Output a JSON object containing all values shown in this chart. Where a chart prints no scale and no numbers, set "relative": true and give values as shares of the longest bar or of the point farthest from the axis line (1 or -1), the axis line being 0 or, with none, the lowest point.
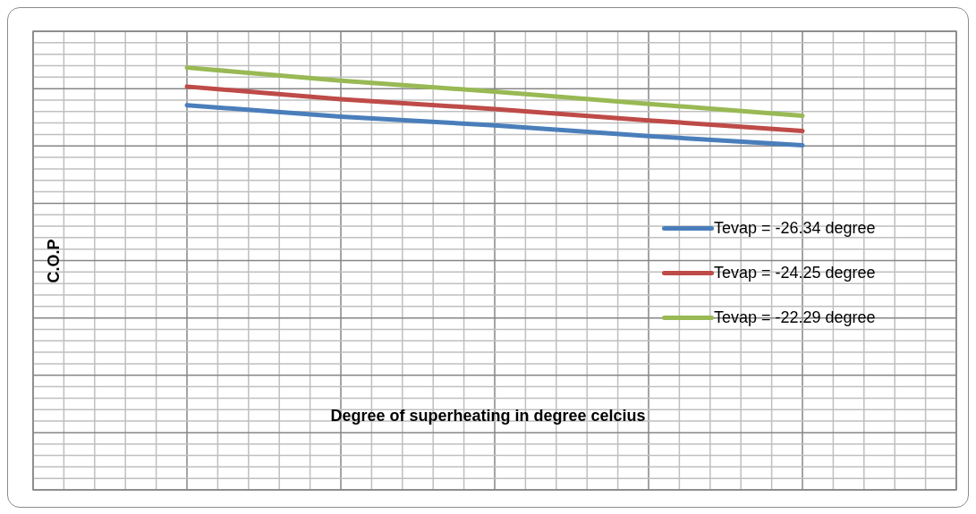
{
  "chart_data": {
    "type": "line",
    "relative": true,
    "xlabel": "Degree of superheating in degree celcius",
    "ylabel": "C.O.P",
    "categories": [
      null,
      null,
      null,
      null,
      null,
      null,
      null
    ],
    "grid": true,
    "legend": "right",
    "marker": "none",
    "line_style": "solid",
    "series": [
      {
        "name": "Tevap = -26.34 degree",
        "color": "#4a7ebb",
        "values": [
          null,
          0.911,
          0.884,
          0.863,
          0.838,
          0.816,
          null
        ]
      },
      {
        "name": "Tevap = -24.25 degree",
        "color": "#be4b48",
        "values": [
          null,
          0.955,
          0.925,
          0.902,
          0.875,
          0.85,
          null
        ]
      },
      {
        "name": "Tevap = -22.29 degree",
        "color": "#98b954",
        "values": [
          null,
          1,
          0.969,
          0.943,
          0.914,
          0.886,
          null
        ]
      }
    ]
  }
}
